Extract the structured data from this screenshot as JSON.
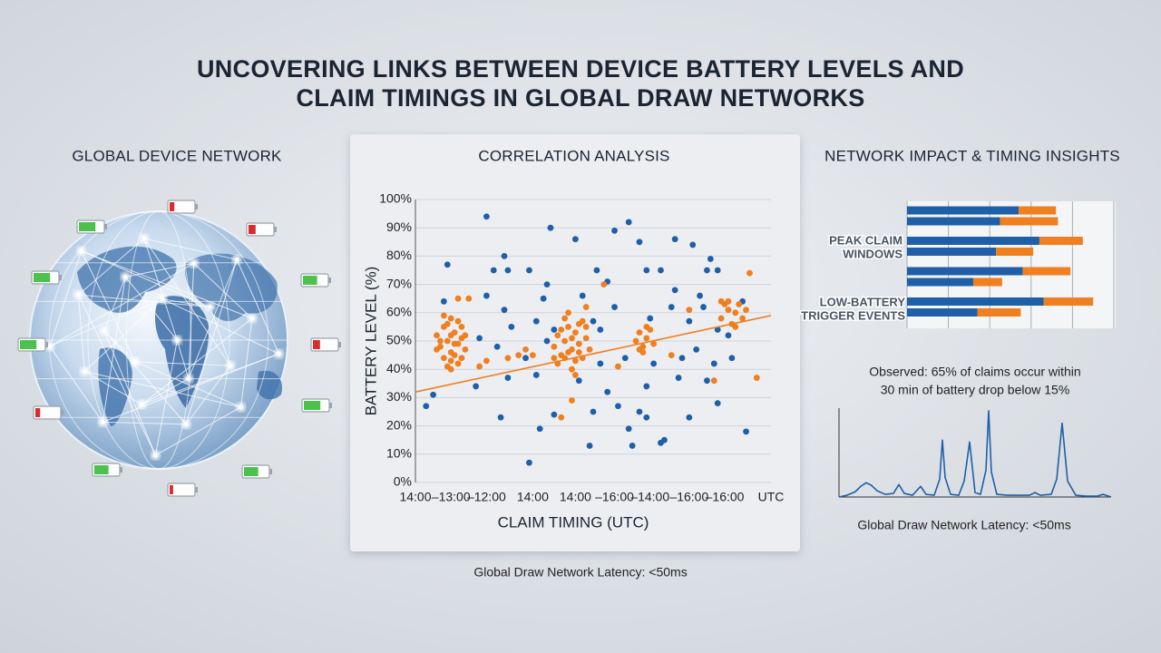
{
  "title": [
    "UNCOVERING LINKS BETWEEN DEVICE BATTERY LEVELS AND",
    "CLAIM TIMINGS IN GLOBAL DRAW NETWORKS"
  ],
  "left_panel": {
    "title": "GLOBAL DEVICE NETWORK"
  },
  "right_panel": {
    "title": "NETWORK IMPACT & TIMING INSIGHTS"
  },
  "footer": "Global Draw Network Latency: <50ms",
  "chart_data": [
    {
      "type": "scatter",
      "title": "CORRELATION ANALYSIS",
      "x_label": "CLAIM TIMING (UTC)",
      "y_label": "BATTERY LEVEL (%)",
      "xlim": [
        0,
        100
      ],
      "ylim": [
        0,
        100
      ],
      "xticks": [
        {
          "value": 0,
          "label": "14:00"
        },
        {
          "value": 10,
          "label": "–13:00"
        },
        {
          "value": 20,
          "label": "–12:00"
        },
        {
          "value": 33,
          "label": "14:00"
        },
        {
          "value": 45,
          "label": "14:00"
        },
        {
          "value": 56,
          "label": "–16:00"
        },
        {
          "value": 66,
          "label": "–14:00"
        },
        {
          "value": 77,
          "label": "–16:00"
        },
        {
          "value": 87,
          "label": "–16:00"
        },
        {
          "value": 100,
          "label": "UTC"
        }
      ],
      "yticks": [
        {
          "value": 0,
          "label": "0%"
        },
        {
          "value": 10,
          "label": "10%"
        },
        {
          "value": 20,
          "label": "20%"
        },
        {
          "value": 30,
          "label": "30%"
        },
        {
          "value": 40,
          "label": "40%"
        },
        {
          "value": 50,
          "label": "50%"
        },
        {
          "value": 60,
          "label": "60%"
        },
        {
          "value": 70,
          "label": "70%"
        },
        {
          "value": 80,
          "label": "80%"
        },
        {
          "value": 90,
          "label": "90%"
        },
        {
          "value": 100,
          "label": "100%"
        }
      ],
      "grid": true,
      "series": [
        {
          "color": "#1f5fa8",
          "x": [
            20,
            38,
            60,
            56,
            73,
            45,
            63,
            9,
            25,
            22,
            26,
            32,
            51,
            54,
            65,
            69,
            78,
            82,
            85,
            83,
            37,
            20,
            8,
            47,
            56,
            73,
            80,
            81,
            72,
            92,
            36,
            25,
            34,
            27,
            39,
            37,
            50,
            52,
            66,
            77,
            85,
            88,
            23,
            18,
            31,
            34,
            26,
            17,
            5,
            3,
            52,
            59,
            67,
            75,
            79,
            84,
            89,
            46,
            54,
            65,
            74,
            82,
            50,
            63,
            65,
            77,
            24,
            39,
            57,
            35,
            60,
            70,
            49,
            61,
            69,
            93,
            32,
            85
          ],
          "values": [
            94,
            90,
            92,
            89,
            86,
            86,
            85,
            77,
            80,
            75,
            75,
            75,
            75,
            71,
            75,
            75,
            84,
            75,
            75,
            79,
            70,
            66,
            64,
            66,
            62,
            68,
            66,
            62,
            62,
            64,
            65,
            61,
            57,
            55,
            54,
            50,
            57,
            54,
            58,
            57,
            54,
            52,
            48,
            51,
            44,
            38,
            37,
            34,
            31,
            27,
            42,
            44,
            42,
            44,
            47,
            42,
            44,
            36,
            32,
            34,
            37,
            36,
            25,
            25,
            23,
            23,
            23,
            24,
            27,
            19,
            19,
            15,
            13,
            13,
            14,
            18,
            7,
            28
          ]
        },
        {
          "color": "#f07f1f",
          "x": [
            6,
            7,
            8,
            9,
            10,
            11,
            12,
            13,
            14,
            8,
            10,
            12,
            9,
            11,
            13,
            7,
            10,
            12,
            14,
            9,
            11,
            6,
            13,
            10,
            8,
            39,
            40,
            41,
            42,
            43,
            44,
            45,
            46,
            47,
            48,
            40,
            42,
            44,
            46,
            43,
            45,
            41,
            47,
            49,
            44,
            42,
            46,
            43,
            45,
            48,
            62,
            63,
            64,
            65,
            66,
            67,
            64,
            65,
            63,
            86,
            88,
            89,
            90,
            91,
            92,
            87,
            90,
            93,
            88,
            12,
            15,
            26,
            29,
            33,
            20,
            18,
            39,
            53,
            48,
            44,
            41,
            57,
            72,
            84,
            94,
            96,
            77,
            86,
            31,
            10
          ],
          "values": [
            52,
            48,
            55,
            50,
            46,
            53,
            49,
            51,
            47,
            44,
            58,
            42,
            56,
            45,
            55,
            50,
            52,
            57,
            52,
            41,
            49,
            47,
            44,
            40,
            59,
            48,
            52,
            45,
            50,
            55,
            47,
            53,
            49,
            44,
            51,
            42,
            58,
            40,
            56,
            46,
            43,
            54,
            57,
            47,
            51,
            44,
            46,
            60,
            38,
            55,
            50,
            53,
            48,
            51,
            54,
            49,
            46,
            55,
            47,
            58,
            61,
            56,
            60,
            63,
            58,
            63,
            55,
            61,
            64,
            65,
            65,
            44,
            45,
            45,
            43,
            41,
            44,
            70,
            62,
            29,
            23,
            41,
            45,
            36,
            74,
            37,
            61,
            64,
            47,
            43
          ]
        }
      ],
      "trend": {
        "color": "#f07f1f",
        "x": [
          0,
          100
        ],
        "values": [
          32,
          59
        ]
      }
    },
    {
      "type": "stacked_bar_horizontal",
      "categories": [
        null,
        null,
        null,
        null,
        null,
        null,
        null,
        null
      ],
      "xlim": [
        0,
        100
      ],
      "xticks": [
        0,
        20,
        40,
        60,
        80,
        100
      ],
      "grid": true,
      "series": [
        {
          "color": "#1f5fa8",
          "values": [
            54,
            45,
            64,
            43,
            56,
            32,
            66,
            34
          ]
        },
        {
          "color": "#f07f1f",
          "values": [
            18,
            28,
            21,
            18,
            23,
            14,
            24,
            21
          ]
        }
      ],
      "annotations": [
        [
          "PEAK CLAIM",
          "WINDOWS"
        ],
        [
          "LOW-BATTERY",
          "TRIGGER EVENTS"
        ]
      ]
    },
    {
      "type": "line",
      "annotation": [
        "Observed: 65% of claims occur within",
        "30 min of battery drop below 15%"
      ],
      "caption": "Global Draw Network Latency: <50ms",
      "color": "#1f5fa8",
      "xlim": [
        0,
        100
      ],
      "ylim": [
        0,
        100
      ],
      "x": [
        0,
        3,
        6,
        8,
        10,
        12,
        14,
        17,
        20,
        22,
        24,
        27,
        30,
        32,
        35,
        37,
        38,
        39,
        41,
        44,
        46,
        48,
        50,
        52,
        54,
        55,
        56,
        58,
        62,
        66,
        70,
        72,
        74,
        78,
        80,
        82,
        84,
        87,
        91,
        95,
        97,
        100
      ],
      "values": [
        0,
        2,
        6,
        12,
        16,
        13,
        7,
        3,
        4,
        14,
        4,
        2,
        12,
        3,
        2,
        20,
        64,
        22,
        3,
        2,
        18,
        62,
        5,
        3,
        30,
        97,
        28,
        3,
        2,
        2,
        2,
        5,
        2,
        3,
        20,
        83,
        18,
        2,
        1,
        1,
        3,
        0
      ]
    }
  ]
}
